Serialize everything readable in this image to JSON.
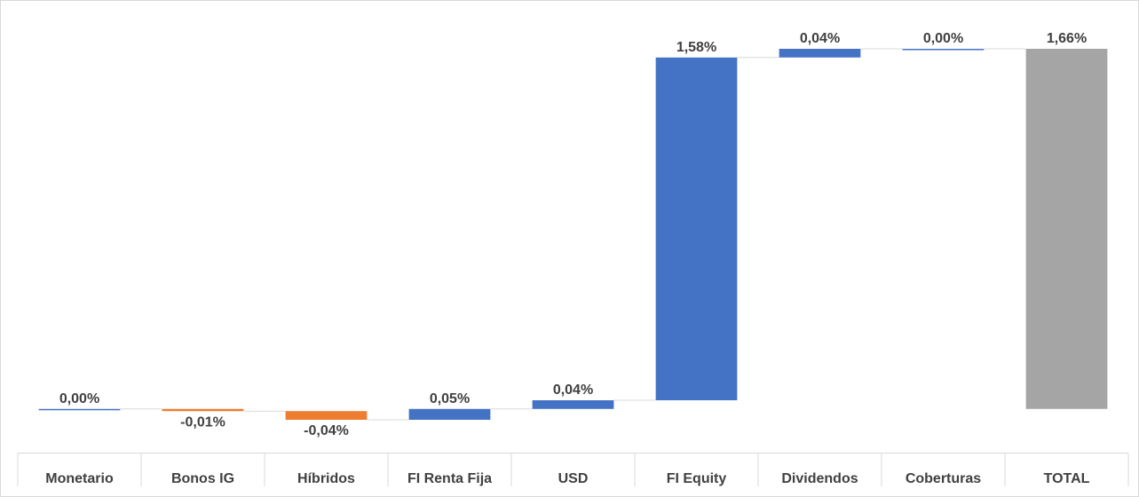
{
  "chart_data": {
    "type": "waterfall",
    "categories": [
      "Monetario",
      "Bonos IG",
      "Híbridos",
      "FI Renta Fija",
      "USD",
      "FI Equity",
      "Dividendos",
      "Coberturas",
      "TOTAL"
    ],
    "values": [
      0.0,
      -0.01,
      -0.04,
      0.05,
      0.04,
      1.58,
      0.04,
      0.0,
      1.66
    ],
    "value_labels": [
      "0,00%",
      "-0,01%",
      "-0,04%",
      "0,05%",
      "0,04%",
      "1,58%",
      "0,04%",
      "0,00%",
      "1,66%"
    ],
    "colors": [
      "#4472c4",
      "#ed7d31",
      "#ed7d31",
      "#4472c4",
      "#4472c4",
      "#4472c4",
      "#4472c4",
      "#4472c4",
      "#a5a5a5"
    ]
  }
}
